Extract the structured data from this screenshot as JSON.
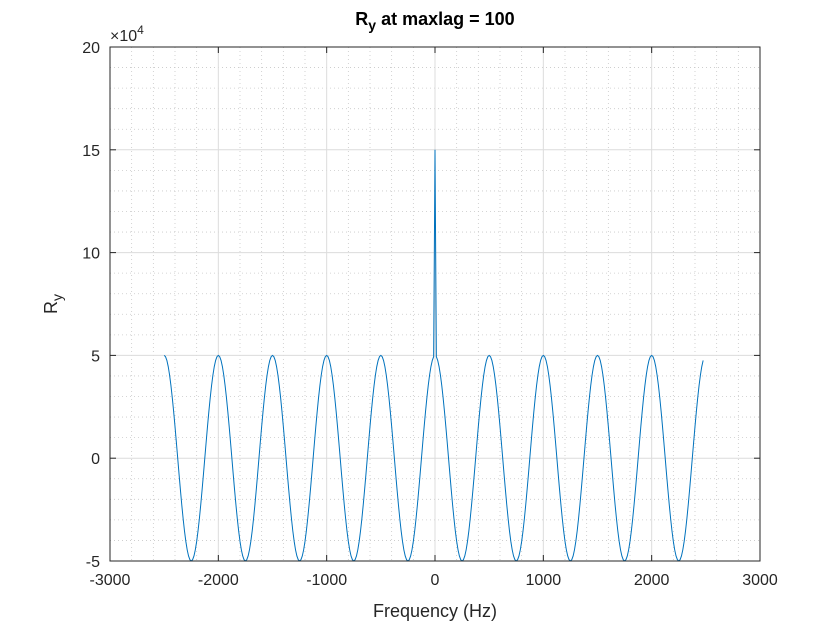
{
  "chart_data": {
    "type": "line",
    "title_main": "R",
    "title_sub": "y",
    "title_rest": " at maxlag = 100",
    "xlabel": "Frequency (Hz)",
    "ylabel_main": "R",
    "ylabel_sub": "y",
    "xlim": [
      -3000,
      3000
    ],
    "ylim": [
      -5,
      20
    ],
    "y_exponent_base": "×10",
    "y_exponent_power": "4",
    "xticks": [
      -3000,
      -2000,
      -1000,
      0,
      1000,
      2000,
      3000
    ],
    "xtick_labels": [
      "-3000",
      "-2000",
      "-1000",
      "0",
      "1000",
      "2000",
      "3000"
    ],
    "yticks": [
      -5,
      0,
      5,
      10,
      15,
      20
    ],
    "ytick_labels": [
      "-5",
      "0",
      "5",
      "10",
      "15",
      "20"
    ],
    "grid": true,
    "minor_grid": true,
    "series": [
      {
        "color": "#0072BD",
        "x_range": [
          -2500,
          2475
        ],
        "x_step": 12.5,
        "amplitude": 5,
        "period_hz": 500,
        "peak": {
          "x": 0,
          "y": 15
        }
      }
    ]
  }
}
